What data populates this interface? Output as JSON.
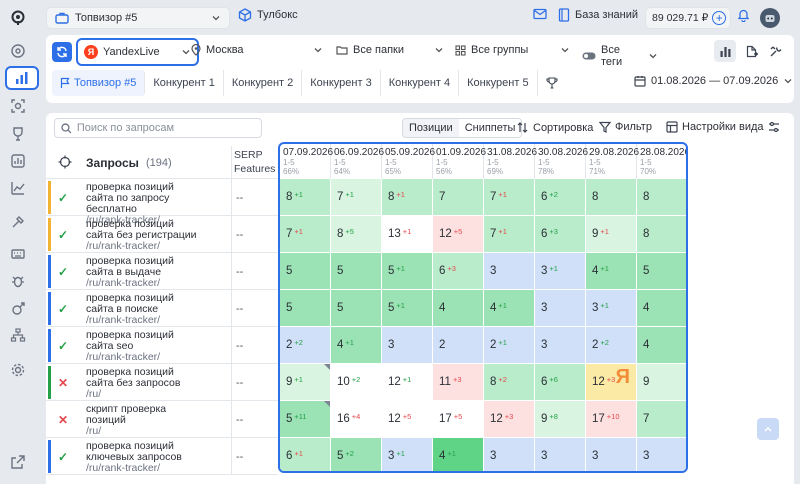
{
  "topbar": {
    "project": "Топвизор #5",
    "toolbox": "Тулбокс",
    "knowledge_base": "База знаний",
    "balance": "89 029.71 ₽"
  },
  "filters": {
    "engine": "YandexLive",
    "region": "Москва",
    "folders": "Все папки",
    "groups": "Все группы",
    "tags": "Все теги"
  },
  "tabs": [
    {
      "label": "Топвизор #5"
    },
    {
      "label": "Конкурент 1"
    },
    {
      "label": "Конкурент 2"
    },
    {
      "label": "Конкурент 3"
    },
    {
      "label": "Конкурент 4"
    },
    {
      "label": "Конкурент 5"
    }
  ],
  "date_range": "01.08.2026 — 07.09.2026",
  "toolbar": {
    "search_placeholder": "Поиск по запросам",
    "positions": "Позиции",
    "snippets": "Сниппеты",
    "sort": "Сортировка",
    "filter": "Фильтр",
    "view_settings": "Настройки вида"
  },
  "table": {
    "queries_header": "Запросы",
    "queries_count": "(194)",
    "serp_header_line1": "SERP",
    "serp_header_line2": "Features",
    "dates": [
      {
        "date": "07.09.2026",
        "range": "1-5",
        "pct": "66%"
      },
      {
        "date": "06.09.2026",
        "range": "1-5",
        "pct": "64%"
      },
      {
        "date": "05.09.2026",
        "range": "1-5",
        "pct": "65%"
      },
      {
        "date": "01.09.2026",
        "range": "1-5",
        "pct": "56%"
      },
      {
        "date": "31.08.2026",
        "range": "1-5",
        "pct": "69%"
      },
      {
        "date": "30.08.2026",
        "range": "1-5",
        "pct": "78%"
      },
      {
        "date": "29.08.2026",
        "range": "1-5",
        "pct": "71%"
      },
      {
        "date": "28.08.2026",
        "range": "1-5",
        "pct": "70%"
      }
    ],
    "rows": [
      {
        "status": "check",
        "flag": "#f2b233",
        "title": "проверка позиций сайта по запросу бесплатно",
        "url": "/ru/rank-tracker/",
        "serp": "--",
        "cells": [
          {
            "v": "8",
            "d": "+1",
            "c": "g2"
          },
          {
            "v": "7",
            "d": "+1",
            "c": "g1"
          },
          {
            "v": "8",
            "d": "+1",
            "c": "g2"
          },
          {
            "v": "7",
            "d": "",
            "c": "g2"
          },
          {
            "v": "7",
            "d": "+1",
            "c": "g2"
          },
          {
            "v": "6",
            "d": "+2",
            "c": "g2"
          },
          {
            "v": "8",
            "d": "",
            "c": "g2"
          },
          {
            "v": "8",
            "d": "",
            "c": "g2"
          }
        ]
      },
      {
        "status": "check",
        "flag": "#f2b233",
        "title": "проверка позиций сайта без регистрации",
        "url": "/ru/rank-tracker/",
        "serp": "--",
        "cells": [
          {
            "v": "7",
            "d": "+1",
            "c": "g2"
          },
          {
            "v": "8",
            "d": "+5",
            "c": "g1"
          },
          {
            "v": "13",
            "d": "+1",
            "c": "w"
          },
          {
            "v": "12",
            "d": "+5",
            "c": "r"
          },
          {
            "v": "7",
            "d": "+1",
            "c": "g2"
          },
          {
            "v": "6",
            "d": "+3",
            "c": "g2"
          },
          {
            "v": "9",
            "d": "+1",
            "c": "g1"
          },
          {
            "v": "8",
            "d": "",
            "c": "g2"
          }
        ]
      },
      {
        "status": "check",
        "flag": "#2d6fe6",
        "title": "проверка позиций сайта в выдаче",
        "url": "/ru/rank-tracker/",
        "serp": "--",
        "cells": [
          {
            "v": "5",
            "d": "",
            "c": "g3"
          },
          {
            "v": "5",
            "d": "",
            "c": "g3"
          },
          {
            "v": "5",
            "d": "+1",
            "c": "g3"
          },
          {
            "v": "6",
            "d": "+3",
            "c": "g2"
          },
          {
            "v": "3",
            "d": "",
            "c": "b"
          },
          {
            "v": "3",
            "d": "+1",
            "c": "b"
          },
          {
            "v": "4",
            "d": "+1",
            "c": "g3"
          },
          {
            "v": "5",
            "d": "",
            "c": "g3"
          }
        ]
      },
      {
        "status": "check",
        "flag": "#2d6fe6",
        "title": "проверка позиций сайта в поиске",
        "url": "/ru/rank-tracker/",
        "serp": "--",
        "cells": [
          {
            "v": "5",
            "d": "",
            "c": "g3"
          },
          {
            "v": "5",
            "d": "",
            "c": "g3"
          },
          {
            "v": "5",
            "d": "+1",
            "c": "g3"
          },
          {
            "v": "4",
            "d": "",
            "c": "g3"
          },
          {
            "v": "4",
            "d": "+1",
            "c": "g3"
          },
          {
            "v": "3",
            "d": "",
            "c": "b"
          },
          {
            "v": "3",
            "d": "+1",
            "c": "b"
          },
          {
            "v": "4",
            "d": "",
            "c": "g3"
          }
        ]
      },
      {
        "status": "check",
        "flag": "#2d6fe6",
        "title": "проверка позиций сайта seo",
        "url": "/ru/rank-tracker/",
        "serp": "--",
        "cells": [
          {
            "v": "2",
            "d": "+2",
            "c": "b"
          },
          {
            "v": "4",
            "d": "+1",
            "c": "g3"
          },
          {
            "v": "3",
            "d": "",
            "c": "b"
          },
          {
            "v": "2",
            "d": "",
            "c": "b"
          },
          {
            "v": "2",
            "d": "+1",
            "c": "b"
          },
          {
            "v": "3",
            "d": "",
            "c": "b"
          },
          {
            "v": "2",
            "d": "+2",
            "c": "b"
          },
          {
            "v": "4",
            "d": "",
            "c": "g3"
          }
        ]
      },
      {
        "status": "cross",
        "flag": "#24a148",
        "title": "проверка позиций сайта без запросов",
        "url": "/ru/",
        "serp": "--",
        "cells": [
          {
            "v": "9",
            "d": "+1",
            "c": "g1"
          },
          {
            "v": "10",
            "d": "+2",
            "c": "w"
          },
          {
            "v": "12",
            "d": "+1",
            "c": "w"
          },
          {
            "v": "11",
            "d": "+3",
            "c": "r"
          },
          {
            "v": "8",
            "d": "+2",
            "c": "g2"
          },
          {
            "v": "6",
            "d": "+6",
            "c": "g2"
          },
          {
            "v": "12",
            "d": "+3",
            "c": "y"
          },
          {
            "v": "9",
            "d": "",
            "c": "g1"
          }
        ]
      },
      {
        "status": "cross",
        "flag": "",
        "title": "скрипт проверка позиций",
        "url": "/ru/",
        "serp": "--",
        "cells": [
          {
            "v": "5",
            "d": "+11",
            "c": "g3"
          },
          {
            "v": "16",
            "d": "+4",
            "c": "w"
          },
          {
            "v": "12",
            "d": "+5",
            "c": "w"
          },
          {
            "v": "17",
            "d": "+5",
            "c": "w"
          },
          {
            "v": "12",
            "d": "+3",
            "c": "r"
          },
          {
            "v": "9",
            "d": "+8",
            "c": "g1"
          },
          {
            "v": "17",
            "d": "+10",
            "c": "r"
          },
          {
            "v": "7",
            "d": "",
            "c": "g2"
          }
        ]
      },
      {
        "status": "check",
        "flag": "#2d6fe6",
        "title": "проверка позиций ключевых запросов",
        "url": "/ru/rank-tracker/",
        "serp": "--",
        "cells": [
          {
            "v": "6",
            "d": "+1",
            "c": "g2"
          },
          {
            "v": "5",
            "d": "+2",
            "c": "g3"
          },
          {
            "v": "3",
            "d": "+1",
            "c": "b"
          },
          {
            "v": "4",
            "d": "+1",
            "c": "g4"
          },
          {
            "v": "3",
            "d": "",
            "c": "b"
          },
          {
            "v": "3",
            "d": "",
            "c": "b"
          },
          {
            "v": "3",
            "d": "",
            "c": "b"
          },
          {
            "v": "3",
            "d": "",
            "c": "b"
          }
        ]
      }
    ]
  },
  "colors": {
    "accent": "#2d6fe6",
    "g1": "#d9f5e1",
    "g2": "#b9eccb",
    "g3": "#9be3b4",
    "g4": "#5fd487",
    "b": "#cfe0f8",
    "r": "#fde1e1",
    "w": "#ffffff",
    "y": "#fbe9a6"
  }
}
